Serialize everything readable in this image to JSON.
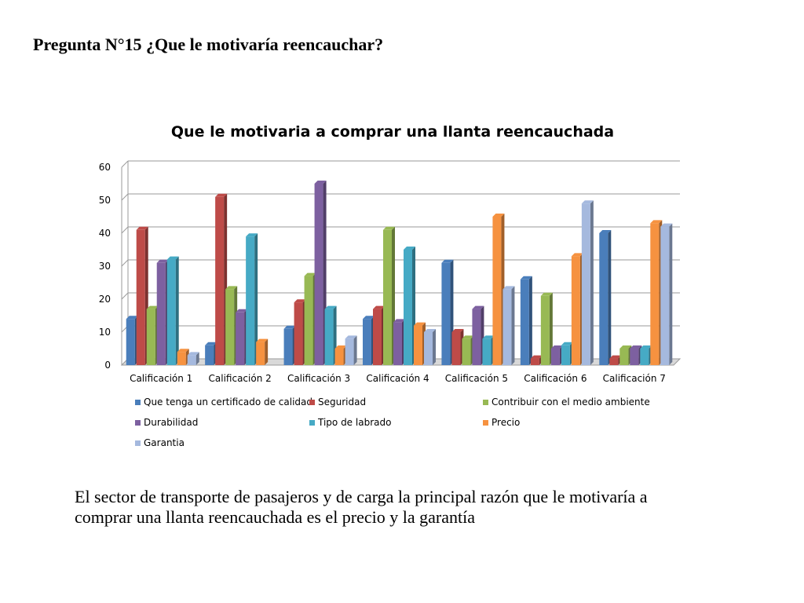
{
  "slide": {
    "heading": "Pregunta N°15 ¿Que le motivaría reencauchar?",
    "paragraph": "El sector de transporte de pasajeros y de carga la principal razón que le motivaría a comprar una llanta reencauchada es el precio y la garantía"
  },
  "chart_data": {
    "type": "bar",
    "title": "Que le motivaria a comprar una llanta reencauchada",
    "xlabel": "",
    "ylabel": "",
    "ylim": [
      0,
      60
    ],
    "yticks": [
      0,
      10,
      20,
      30,
      40,
      50,
      60
    ],
    "grid": true,
    "legend_position": "bottom",
    "categories": [
      "Calificación 1",
      "Calificación 2",
      "Calificación 3",
      "Calificación 4",
      "Calificación 5",
      "Calificación 6",
      "Calificación 7"
    ],
    "series": [
      {
        "name": "Que tenga un certificado de calidad",
        "color": "#4a7ebb",
        "values": [
          14,
          6,
          11,
          14,
          31,
          26,
          40
        ]
      },
      {
        "name": "Seguridad",
        "color": "#be4b48",
        "values": [
          41,
          51,
          19,
          17,
          10,
          2,
          2
        ]
      },
      {
        "name": "Contribuir con el medio ambiente",
        "color": "#98b954",
        "values": [
          17,
          23,
          27,
          41,
          8,
          21,
          5
        ]
      },
      {
        "name": "Durabilidad",
        "color": "#7d60a0",
        "values": [
          31,
          16,
          55,
          13,
          17,
          5,
          5
        ]
      },
      {
        "name": "Tipo de labrado",
        "color": "#46aac5",
        "values": [
          32,
          39,
          17,
          35,
          8,
          6,
          5
        ]
      },
      {
        "name": "Precio",
        "color": "#f69240",
        "values": [
          4,
          7,
          5,
          12,
          45,
          33,
          43
        ]
      },
      {
        "name": "Garantia",
        "color": "#a5b9de",
        "values": [
          3,
          0,
          8,
          10,
          23,
          49,
          42
        ]
      }
    ]
  }
}
